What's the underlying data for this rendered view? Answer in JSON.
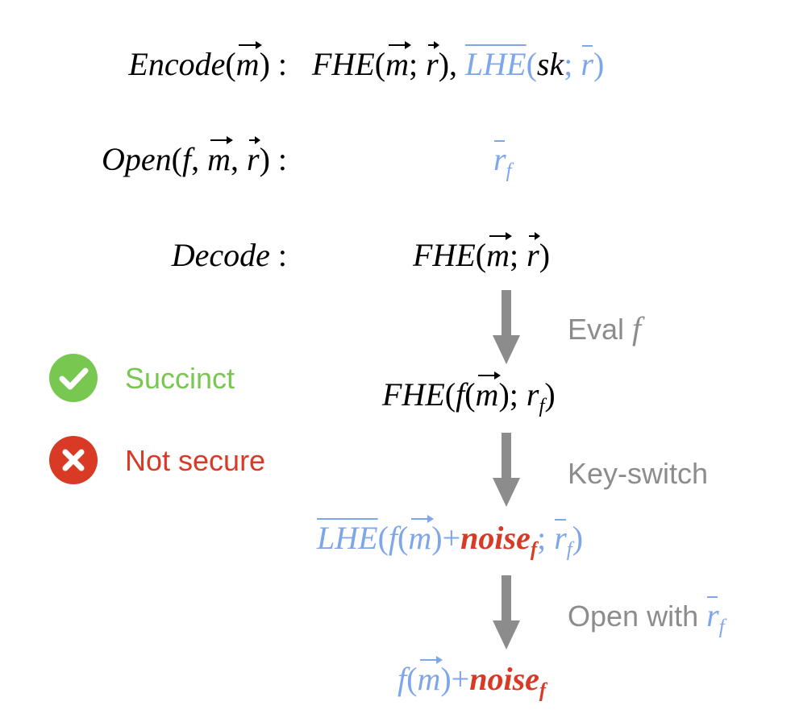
{
  "rows": {
    "encode": {
      "label": "Encode",
      "arg": "m",
      "fhe": "FHE",
      "lhe": "LHE",
      "sk": "sk",
      "rand_vec": "r",
      "rand_bar": "r"
    },
    "open": {
      "label": "Open",
      "f": "f",
      "m": "m",
      "r": "r",
      "value": "r",
      "value_sub": "f"
    },
    "decode": {
      "label": "Decode"
    }
  },
  "pipeline": {
    "step1": "FHE",
    "step2": "FHE",
    "step2_sub": "f",
    "step3": "LHE",
    "noise": "noise",
    "noise_sub": "f",
    "final_noise": "noise",
    "final_noise_sub": "f"
  },
  "arrow_labels": {
    "eval": "Eval",
    "eval_f": "f",
    "key_switch": "Key-switch",
    "open_with": "Open with",
    "open_with_sub": "f"
  },
  "status": {
    "succinct": "Succinct",
    "not_secure": "Not secure"
  },
  "colors": {
    "blue": "#7ea6ea",
    "red": "#d83a26",
    "green": "#78c750",
    "gray": "#8c8c8c"
  },
  "icons": {
    "succinct": "check-circle-icon",
    "not_secure": "x-circle-icon"
  }
}
